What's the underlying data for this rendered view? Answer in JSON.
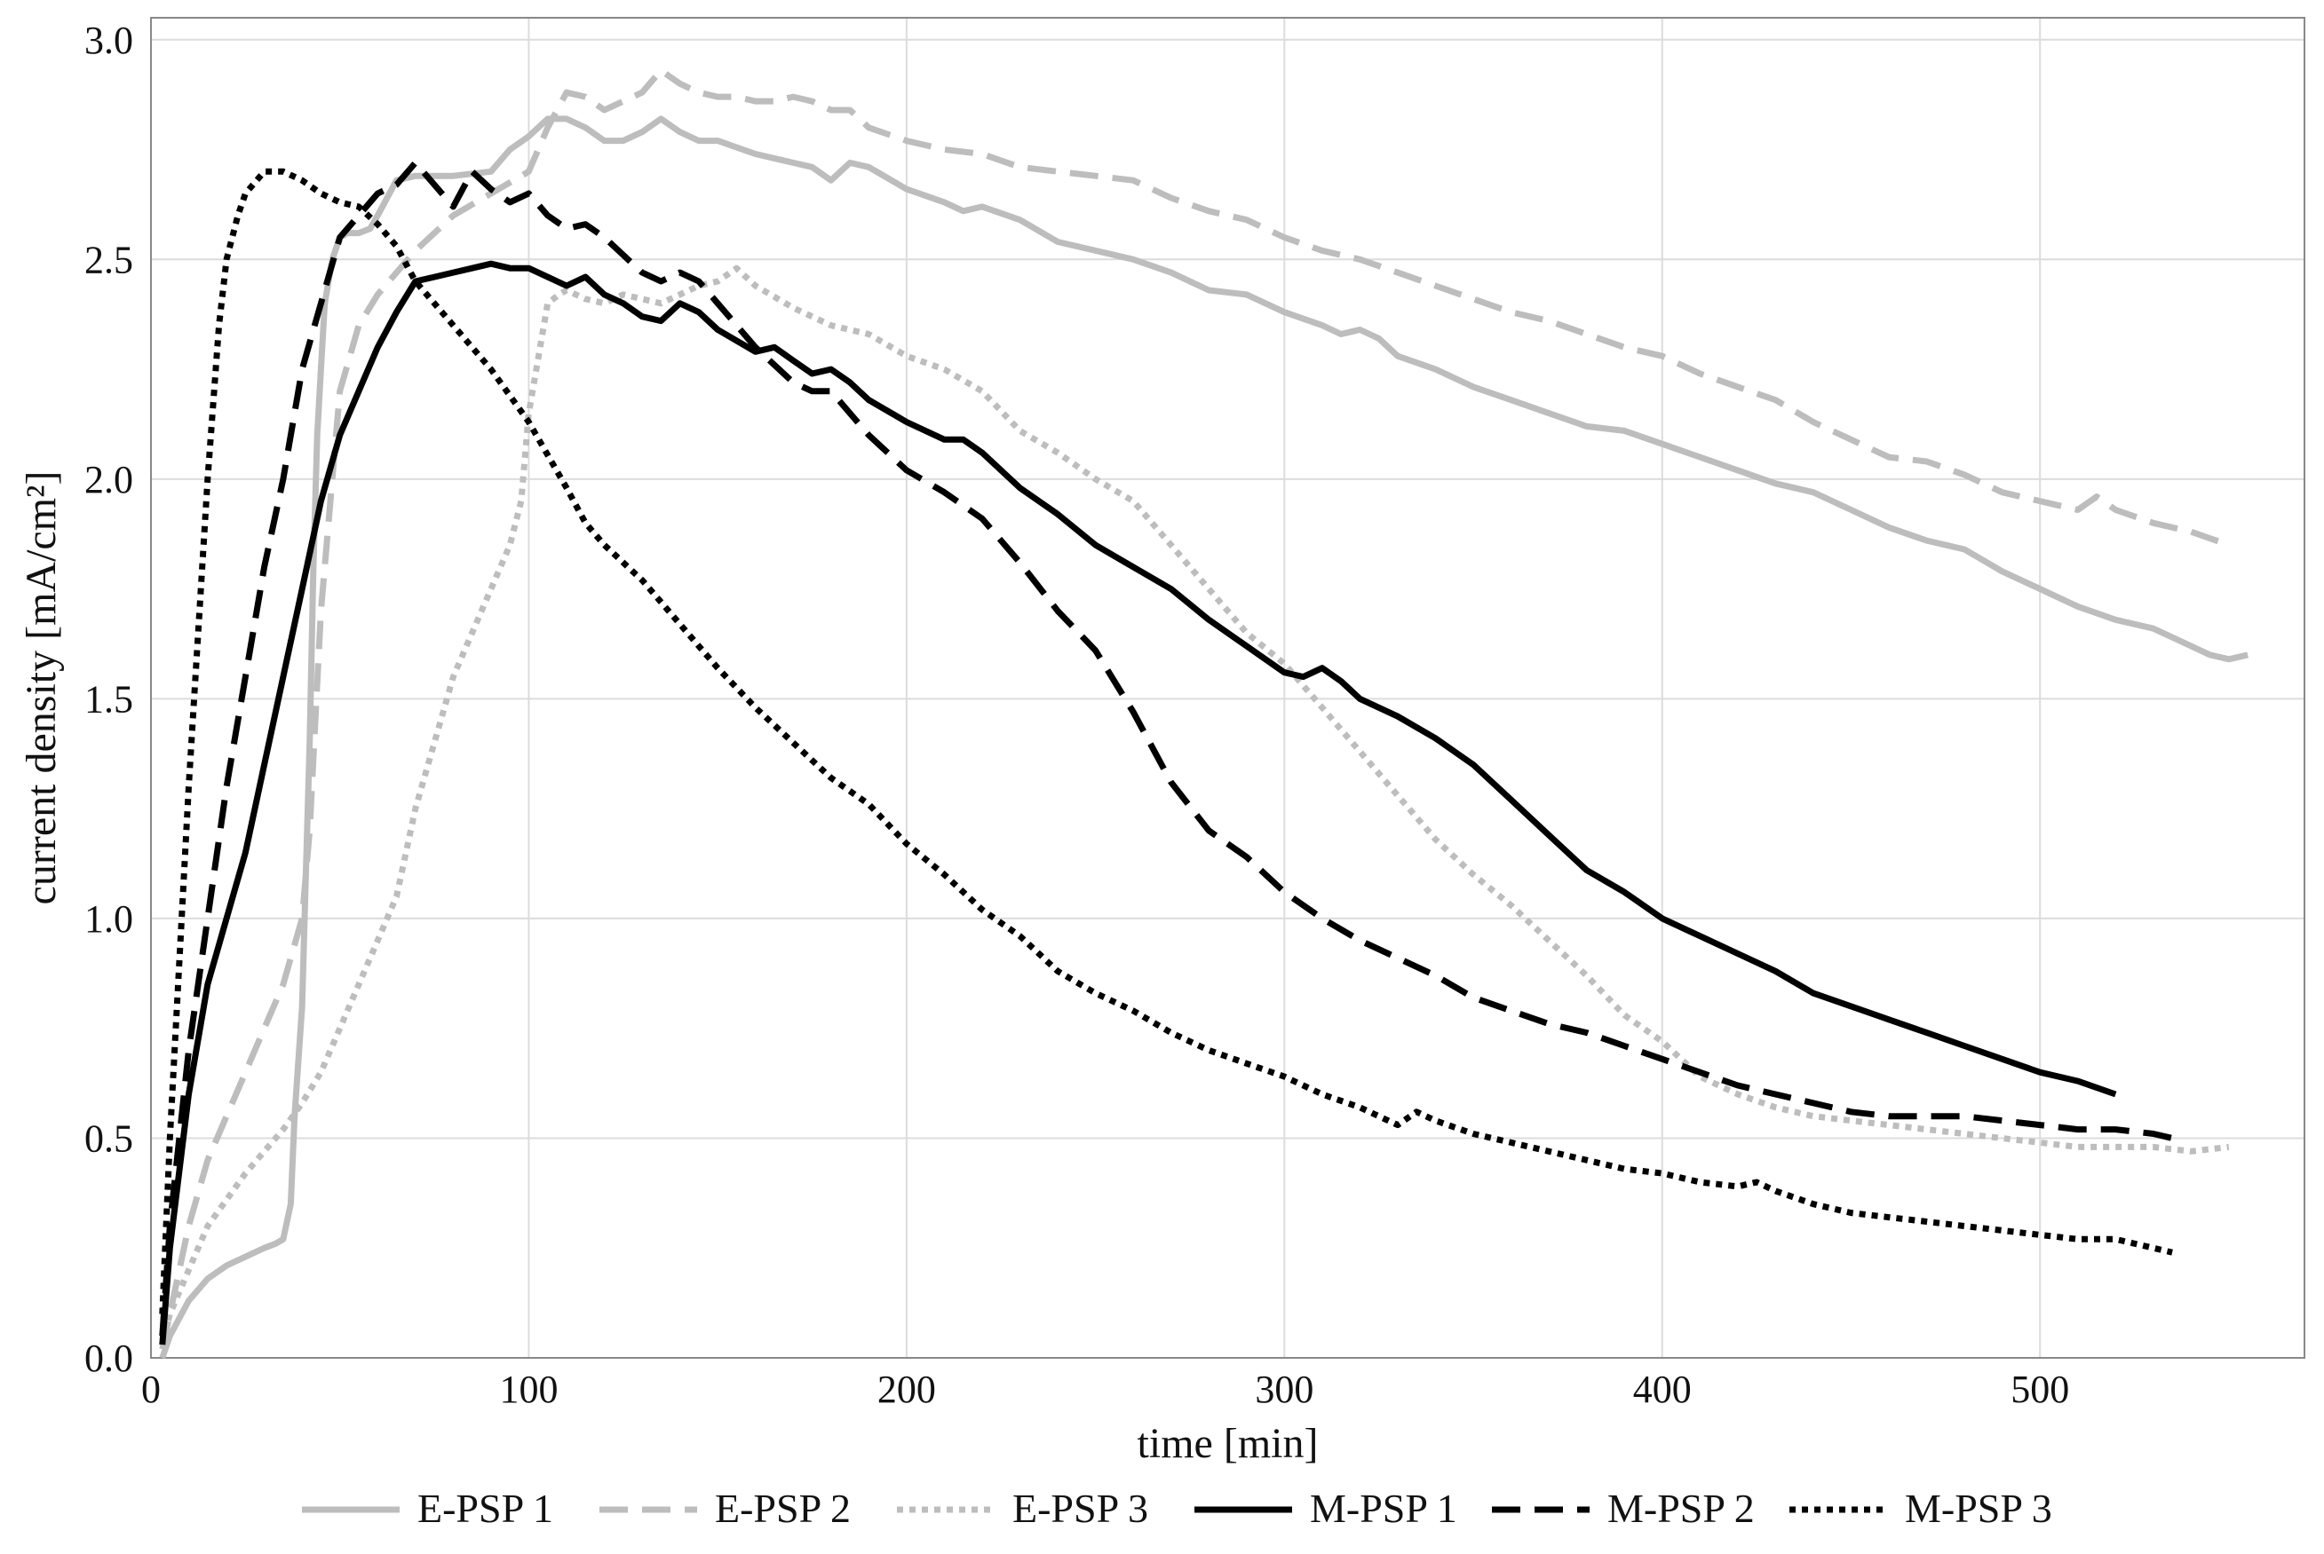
{
  "chart_data": {
    "type": "line",
    "title": "",
    "xlabel": "time [min]",
    "ylabel": "current density  [mA/cm²]",
    "xlim": [
      0,
      570
    ],
    "ylim": [
      0,
      3.05
    ],
    "grid": true,
    "legend_position": "bottom",
    "x_ticks": [
      0,
      100,
      200,
      300,
      400,
      500
    ],
    "x_tick_labels": [
      "0",
      "100",
      "200",
      "300",
      "400",
      "500"
    ],
    "y_ticks": [
      0.0,
      0.5,
      1.0,
      1.5,
      2.0,
      2.5,
      3.0
    ],
    "y_tick_labels": [
      "0.0",
      "0.5",
      "1.0",
      "1.5",
      "2.0",
      "2.5",
      "3.0"
    ],
    "colors": {
      "light": "#bdbdbd",
      "dark": "#000000",
      "grid": "#dcdcdc",
      "frame": "#888888"
    },
    "series": [
      {
        "name": "E-PSP 1",
        "style": "solid",
        "color": "#bdbdbd",
        "x": [
          3,
          5,
          10,
          15,
          20,
          25,
          30,
          33,
          35,
          37,
          38,
          40,
          41,
          42,
          43,
          44,
          45,
          46,
          48,
          50,
          52,
          55,
          58,
          60,
          65,
          70,
          80,
          90,
          95,
          100,
          105,
          110,
          115,
          120,
          125,
          130,
          135,
          140,
          145,
          150,
          160,
          170,
          175,
          180,
          185,
          190,
          200,
          210,
          215,
          220,
          230,
          240,
          250,
          260,
          270,
          280,
          290,
          300,
          310,
          315,
          320,
          325,
          330,
          340,
          350,
          360,
          370,
          380,
          390,
          400,
          410,
          420,
          430,
          440,
          450,
          460,
          470,
          480,
          490,
          500,
          510,
          520,
          530,
          540,
          545,
          550,
          555
        ],
        "y": [
          0.0,
          0.05,
          0.13,
          0.18,
          0.21,
          0.23,
          0.25,
          0.26,
          0.27,
          0.35,
          0.55,
          0.8,
          1.1,
          1.4,
          1.8,
          2.1,
          2.25,
          2.4,
          2.5,
          2.55,
          2.56,
          2.56,
          2.57,
          2.6,
          2.68,
          2.69,
          2.69,
          2.7,
          2.75,
          2.78,
          2.82,
          2.82,
          2.8,
          2.77,
          2.77,
          2.79,
          2.82,
          2.79,
          2.77,
          2.77,
          2.74,
          2.72,
          2.71,
          2.68,
          2.72,
          2.71,
          2.66,
          2.63,
          2.61,
          2.62,
          2.59,
          2.54,
          2.52,
          2.5,
          2.47,
          2.43,
          2.42,
          2.38,
          2.35,
          2.33,
          2.34,
          2.32,
          2.28,
          2.25,
          2.21,
          2.18,
          2.15,
          2.12,
          2.11,
          2.08,
          2.05,
          2.02,
          1.99,
          1.97,
          1.93,
          1.89,
          1.86,
          1.84,
          1.79,
          1.75,
          1.71,
          1.68,
          1.66,
          1.62,
          1.6,
          1.59,
          1.6
        ]
      },
      {
        "name": "E-PSP 2",
        "style": "dashed",
        "color": "#bdbdbd",
        "x": [
          3,
          5,
          10,
          15,
          20,
          25,
          30,
          35,
          40,
          42,
          45,
          50,
          55,
          60,
          65,
          70,
          80,
          90,
          100,
          105,
          110,
          115,
          120,
          125,
          130,
          135,
          140,
          145,
          150,
          155,
          160,
          165,
          170,
          175,
          180,
          185,
          190,
          200,
          210,
          220,
          230,
          240,
          250,
          260,
          270,
          280,
          290,
          300,
          310,
          320,
          330,
          340,
          350,
          360,
          370,
          380,
          390,
          400,
          410,
          420,
          430,
          440,
          450,
          460,
          470,
          480,
          490,
          500,
          510,
          515,
          520,
          530,
          540,
          550
        ],
        "y": [
          0.02,
          0.1,
          0.3,
          0.45,
          0.55,
          0.65,
          0.75,
          0.85,
          1.0,
          1.2,
          1.7,
          2.2,
          2.35,
          2.42,
          2.47,
          2.52,
          2.6,
          2.65,
          2.7,
          2.8,
          2.88,
          2.87,
          2.84,
          2.86,
          2.88,
          2.93,
          2.9,
          2.88,
          2.87,
          2.87,
          2.86,
          2.86,
          2.87,
          2.86,
          2.84,
          2.84,
          2.8,
          2.77,
          2.75,
          2.74,
          2.71,
          2.7,
          2.69,
          2.68,
          2.64,
          2.61,
          2.59,
          2.55,
          2.52,
          2.5,
          2.47,
          2.44,
          2.41,
          2.38,
          2.36,
          2.33,
          2.3,
          2.28,
          2.24,
          2.21,
          2.18,
          2.13,
          2.09,
          2.05,
          2.04,
          2.01,
          1.97,
          1.95,
          1.93,
          1.96,
          1.93,
          1.9,
          1.88,
          1.85
        ]
      },
      {
        "name": "E-PSP 3",
        "style": "dotted",
        "color": "#bdbdbd",
        "x": [
          3,
          5,
          10,
          15,
          20,
          25,
          30,
          35,
          40,
          45,
          50,
          55,
          60,
          65,
          70,
          75,
          80,
          85,
          90,
          95,
          98,
          100,
          103,
          105,
          108,
          110,
          115,
          120,
          125,
          130,
          135,
          140,
          145,
          150,
          155,
          160,
          170,
          180,
          190,
          200,
          210,
          220,
          230,
          240,
          250,
          260,
          270,
          280,
          290,
          300,
          310,
          320,
          330,
          340,
          350,
          360,
          370,
          380,
          390,
          400,
          410,
          420,
          430,
          440,
          450,
          460,
          470,
          480,
          490,
          500,
          510,
          520,
          530,
          540,
          550
        ],
        "y": [
          0.03,
          0.1,
          0.2,
          0.3,
          0.36,
          0.42,
          0.47,
          0.52,
          0.58,
          0.65,
          0.75,
          0.85,
          0.95,
          1.05,
          1.25,
          1.4,
          1.55,
          1.65,
          1.75,
          1.85,
          1.95,
          2.15,
          2.3,
          2.4,
          2.42,
          2.43,
          2.41,
          2.4,
          2.42,
          2.41,
          2.4,
          2.42,
          2.44,
          2.45,
          2.48,
          2.44,
          2.39,
          2.35,
          2.33,
          2.28,
          2.25,
          2.2,
          2.11,
          2.06,
          2.0,
          1.95,
          1.85,
          1.75,
          1.65,
          1.58,
          1.48,
          1.38,
          1.28,
          1.18,
          1.1,
          1.03,
          0.95,
          0.87,
          0.78,
          0.72,
          0.64,
          0.6,
          0.57,
          0.55,
          0.54,
          0.53,
          0.52,
          0.51,
          0.5,
          0.49,
          0.48,
          0.48,
          0.48,
          0.47,
          0.48
        ]
      },
      {
        "name": "M-PSP 1",
        "style": "solid",
        "color": "#000000",
        "x": [
          3,
          5,
          10,
          15,
          20,
          25,
          30,
          35,
          40,
          45,
          50,
          55,
          60,
          65,
          70,
          75,
          80,
          85,
          90,
          95,
          100,
          105,
          110,
          115,
          120,
          125,
          130,
          135,
          140,
          145,
          150,
          160,
          165,
          170,
          175,
          180,
          185,
          190,
          200,
          210,
          215,
          220,
          230,
          240,
          250,
          260,
          270,
          280,
          290,
          300,
          305,
          310,
          315,
          320,
          330,
          340,
          350,
          360,
          370,
          380,
          390,
          400,
          410,
          420,
          430,
          440,
          450,
          460,
          470,
          480,
          490,
          500,
          510,
          520
        ],
        "y": [
          0.03,
          0.25,
          0.6,
          0.85,
          1.0,
          1.15,
          1.35,
          1.55,
          1.75,
          1.95,
          2.1,
          2.2,
          2.3,
          2.38,
          2.45,
          2.46,
          2.47,
          2.48,
          2.49,
          2.48,
          2.48,
          2.46,
          2.44,
          2.46,
          2.42,
          2.4,
          2.37,
          2.36,
          2.4,
          2.38,
          2.34,
          2.29,
          2.3,
          2.27,
          2.24,
          2.25,
          2.22,
          2.18,
          2.13,
          2.09,
          2.09,
          2.06,
          1.98,
          1.92,
          1.85,
          1.8,
          1.75,
          1.68,
          1.62,
          1.56,
          1.55,
          1.57,
          1.54,
          1.5,
          1.46,
          1.41,
          1.35,
          1.27,
          1.19,
          1.11,
          1.06,
          1.0,
          0.96,
          0.92,
          0.88,
          0.83,
          0.8,
          0.77,
          0.74,
          0.71,
          0.68,
          0.65,
          0.63,
          0.6
        ]
      },
      {
        "name": "M-PSP 2",
        "style": "dashed",
        "color": "#000000",
        "x": [
          3,
          5,
          10,
          15,
          20,
          25,
          30,
          35,
          40,
          45,
          50,
          55,
          60,
          65,
          70,
          75,
          80,
          85,
          90,
          95,
          100,
          105,
          110,
          115,
          120,
          130,
          135,
          140,
          145,
          150,
          160,
          170,
          175,
          180,
          190,
          200,
          210,
          220,
          230,
          240,
          250,
          260,
          270,
          280,
          290,
          300,
          310,
          320,
          330,
          340,
          350,
          360,
          370,
          380,
          390,
          400,
          410,
          420,
          430,
          440,
          450,
          460,
          470,
          480,
          490,
          500,
          510,
          520,
          530,
          535
        ],
        "y": [
          0.05,
          0.3,
          0.7,
          1.0,
          1.3,
          1.55,
          1.8,
          2.0,
          2.25,
          2.4,
          2.55,
          2.6,
          2.65,
          2.67,
          2.72,
          2.67,
          2.62,
          2.7,
          2.66,
          2.63,
          2.65,
          2.6,
          2.57,
          2.58,
          2.55,
          2.47,
          2.45,
          2.47,
          2.45,
          2.4,
          2.3,
          2.22,
          2.2,
          2.2,
          2.1,
          2.02,
          1.97,
          1.91,
          1.81,
          1.7,
          1.61,
          1.47,
          1.31,
          1.2,
          1.14,
          1.06,
          1.0,
          0.95,
          0.91,
          0.87,
          0.82,
          0.79,
          0.76,
          0.74,
          0.71,
          0.68,
          0.65,
          0.62,
          0.6,
          0.58,
          0.56,
          0.55,
          0.55,
          0.55,
          0.54,
          0.53,
          0.52,
          0.52,
          0.51,
          0.5
        ]
      },
      {
        "name": "M-PSP 3",
        "style": "dotted",
        "color": "#000000",
        "x": [
          3,
          5,
          10,
          15,
          18,
          20,
          23,
          25,
          28,
          30,
          33,
          35,
          40,
          45,
          50,
          55,
          60,
          65,
          70,
          80,
          90,
          100,
          110,
          115,
          120,
          130,
          140,
          150,
          160,
          170,
          180,
          190,
          200,
          210,
          220,
          230,
          240,
          250,
          260,
          270,
          280,
          290,
          300,
          310,
          320,
          330,
          335,
          340,
          350,
          360,
          370,
          380,
          390,
          400,
          410,
          420,
          425,
          430,
          440,
          450,
          460,
          470,
          480,
          490,
          500,
          510,
          520,
          530,
          535
        ],
        "y": [
          0.1,
          0.5,
          1.3,
          2.0,
          2.35,
          2.5,
          2.6,
          2.65,
          2.68,
          2.7,
          2.7,
          2.7,
          2.68,
          2.65,
          2.63,
          2.62,
          2.58,
          2.53,
          2.45,
          2.35,
          2.25,
          2.13,
          1.98,
          1.9,
          1.85,
          1.77,
          1.67,
          1.57,
          1.48,
          1.4,
          1.32,
          1.26,
          1.17,
          1.1,
          1.02,
          0.96,
          0.88,
          0.83,
          0.79,
          0.74,
          0.7,
          0.67,
          0.64,
          0.6,
          0.57,
          0.53,
          0.56,
          0.54,
          0.51,
          0.49,
          0.47,
          0.45,
          0.43,
          0.42,
          0.4,
          0.39,
          0.4,
          0.38,
          0.35,
          0.33,
          0.32,
          0.31,
          0.3,
          0.29,
          0.28,
          0.27,
          0.27,
          0.25,
          0.24
        ]
      }
    ]
  }
}
